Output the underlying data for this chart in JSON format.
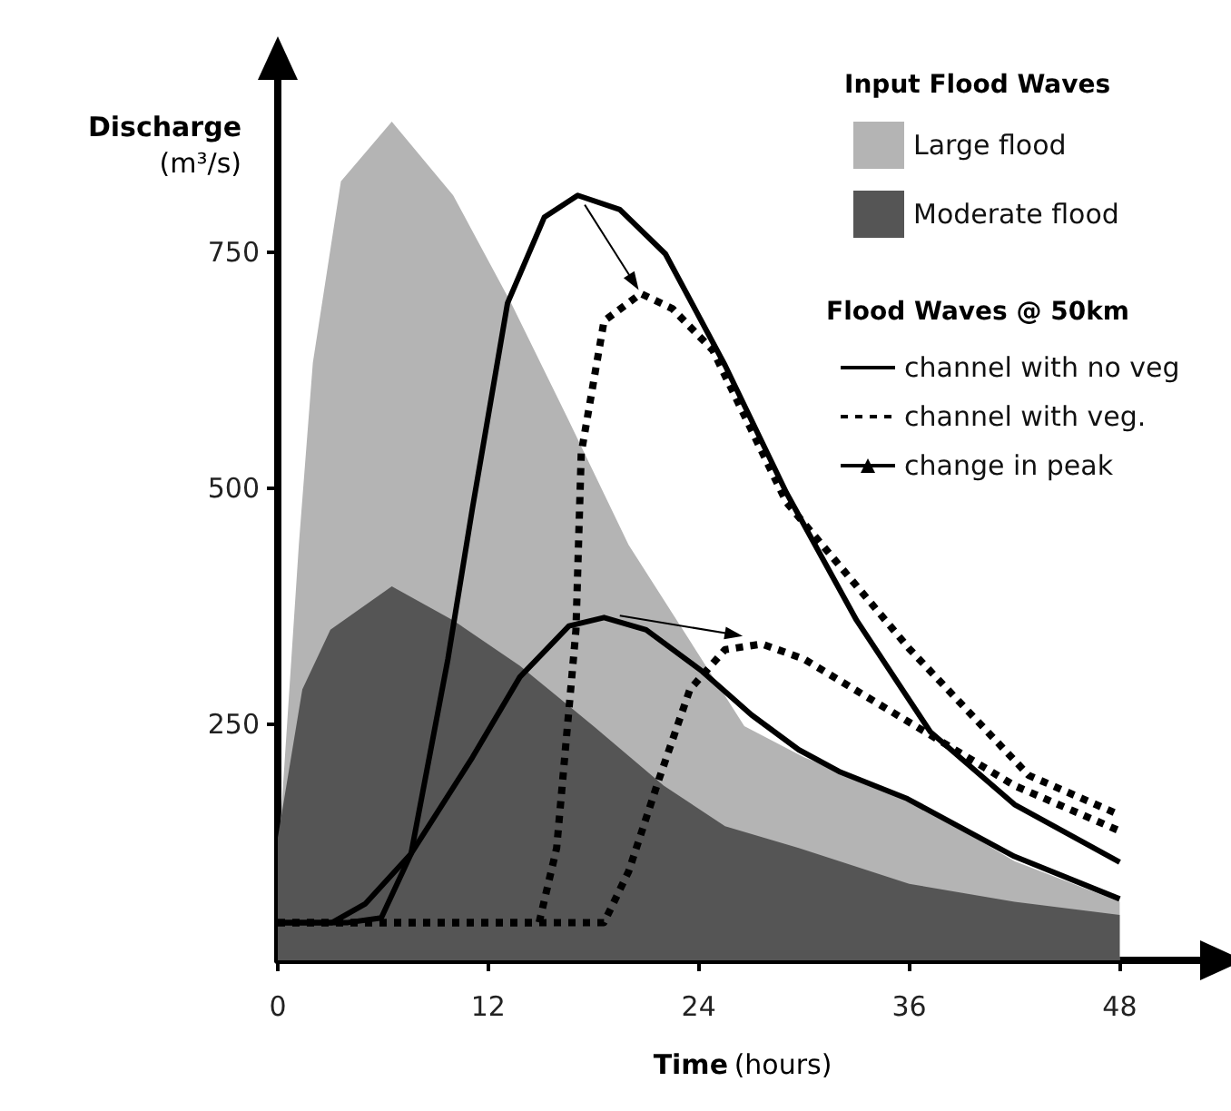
{
  "chart_data": {
    "type": "area",
    "xlabel": "Time (hours)",
    "ylabel": "Discharge\n(m³/s)",
    "legend_title": "Input Flood Waves",
    "annotations": [
      "Flood Waves @ 50km"
    ],
    "xlim": [
      0,
      53
    ],
    "xticks": [
      0,
      12,
      24,
      36,
      48
    ],
    "ylim": [
      0,
      940
    ],
    "yticks": [
      250,
      500,
      750
    ],
    "grid": false,
    "legend": "top right",
    "series": [
      {
        "name": "Large flood",
        "color": "#b4b4b4",
        "x": [
          0,
          1.2,
          2,
          3.6,
          6.5,
          10,
          13.3,
          16.5,
          20,
          26.6,
          30,
          36,
          42,
          48
        ],
        "values": [
          100,
          440,
          633,
          825,
          888,
          810,
          696,
          575,
          440,
          248,
          215,
          171,
          105,
          62
        ]
      },
      {
        "name": "Moderate flood",
        "color": "#555555",
        "x": [
          0,
          1.4,
          3,
          6.5,
          10,
          13.8,
          18,
          22,
          25.5,
          29.7,
          36,
          42,
          48
        ],
        "values": [
          130,
          287,
          350,
          396,
          360,
          312,
          248,
          185,
          142,
          119,
          81,
          62,
          48
        ]
      },
      {
        "name": "channel with no veg",
        "type": "line",
        "line_style": "solid",
        "color": "#000000",
        "x": [
          0,
          4,
          5.9,
          7.6,
          9.7,
          11.1,
          13.1,
          15.2,
          17.1,
          19.5,
          22.1,
          25.5,
          29,
          33,
          37.2,
          42,
          48
        ],
        "values": [
          40,
          40,
          45,
          113,
          319,
          479,
          696,
          787,
          810,
          795,
          748,
          630,
          495,
          360,
          242,
          165,
          104
        ]
      },
      {
        "type": "line",
        "line_style": "solid",
        "color": "#000000",
        "x": [
          0,
          3.1,
          5,
          7.6,
          11.1,
          13.8,
          16.6,
          18.6,
          21,
          24.2,
          27,
          29.7,
          32,
          35.9,
          42,
          48
        ],
        "values": [
          40,
          40,
          60,
          113,
          215,
          300,
          354,
          363,
          350,
          306,
          260,
          223,
          200,
          171,
          110,
          65
        ]
      },
      {
        "name": "channel with veg.",
        "type": "line",
        "line_style": "dotted",
        "color": "#000000",
        "x": [
          0,
          14.9,
          15.9,
          17,
          17.3,
          18.6,
          20.7,
          22.5,
          24.8,
          29,
          36,
          42.8,
          48
        ],
        "values": [
          40,
          40,
          119,
          350,
          537,
          677,
          706,
          690,
          646,
          485,
          330,
          196,
          154
        ]
      },
      {
        "type": "line",
        "line_style": "dotted",
        "color": "#000000",
        "x": [
          0,
          18.6,
          20,
          21.7,
          23.5,
          25.5,
          27.6,
          30,
          36.9,
          42,
          48
        ],
        "values": [
          40,
          40,
          94,
          190,
          287,
          329,
          335,
          319,
          242,
          185,
          137
        ]
      },
      {
        "name": "change in peak",
        "type": "line",
        "line_style": "solid",
        "marker": "triangle",
        "color": "#000000",
        "x": [
          17.5,
          20.3,
          null,
          19.5,
          26
        ],
        "values": [
          800,
          718,
          null,
          365,
          345
        ]
      }
    ]
  }
}
